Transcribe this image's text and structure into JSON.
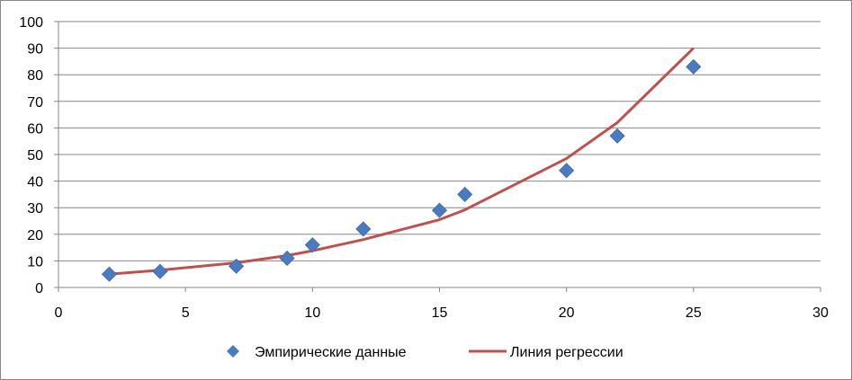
{
  "chart_data": {
    "type": "scatter",
    "title": "",
    "xlabel": "",
    "ylabel": "",
    "xlim": [
      0,
      30
    ],
    "ylim": [
      0,
      100
    ],
    "x_ticks": [
      0,
      5,
      10,
      15,
      20,
      25,
      30
    ],
    "y_ticks": [
      0,
      10,
      20,
      30,
      40,
      50,
      60,
      70,
      80,
      90,
      100
    ],
    "grid": {
      "horizontal": true,
      "vertical": false
    },
    "legend_position": "bottom",
    "series": [
      {
        "name": "Эмпирические данные",
        "kind": "scatter",
        "marker": "diamond",
        "color": "#4a7bc0",
        "x": [
          2,
          4,
          7,
          9,
          10,
          12,
          15,
          16,
          20,
          22,
          25
        ],
        "y": [
          5,
          6,
          8,
          11,
          16,
          22,
          29,
          35,
          44,
          57,
          83
        ]
      },
      {
        "name": "Линия регрессии",
        "kind": "line",
        "color": "#c0504d",
        "x": [
          2,
          4,
          7,
          9,
          10,
          12,
          15,
          16,
          20,
          22,
          25
        ],
        "y": [
          5,
          6.5,
          9.3,
          12,
          13.8,
          18,
          25.5,
          29.2,
          48.5,
          62,
          90
        ]
      }
    ]
  }
}
